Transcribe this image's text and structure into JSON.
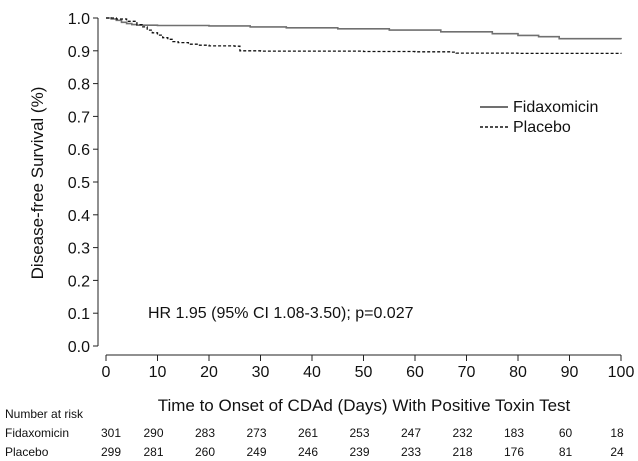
{
  "chart_data": {
    "type": "line",
    "title": "",
    "xlabel": "Time to Onset of CDAd (Days) With Positive Toxin Test",
    "ylabel": "Disease-free Survival (%)",
    "xlim": [
      0,
      100
    ],
    "ylim": [
      0.0,
      1.0
    ],
    "x_ticks": [
      "0",
      "10",
      "20",
      "30",
      "40",
      "50",
      "60",
      "70",
      "80",
      "90",
      "100"
    ],
    "y_ticks": [
      "0.0",
      "0.1",
      "0.2",
      "0.3",
      "0.4",
      "0.5",
      "0.6",
      "0.7",
      "0.8",
      "0.9",
      "1.0"
    ],
    "legend_placement": "right",
    "annotation": "HR 1.95 (95% CI 1.08-3.50); p=0.027",
    "series": [
      {
        "name": "Fidaxomicin",
        "style": "solid",
        "color": "#707070",
        "points": [
          [
            0,
            1.0
          ],
          [
            1,
            0.997
          ],
          [
            2,
            0.993
          ],
          [
            3,
            0.987
          ],
          [
            4,
            0.983
          ],
          [
            5,
            0.98
          ],
          [
            6,
            0.978
          ],
          [
            10,
            0.977
          ],
          [
            20,
            0.976
          ],
          [
            28,
            0.973
          ],
          [
            35,
            0.97
          ],
          [
            45,
            0.967
          ],
          [
            55,
            0.963
          ],
          [
            65,
            0.958
          ],
          [
            75,
            0.952
          ],
          [
            80,
            0.947
          ],
          [
            84,
            0.943
          ],
          [
            88,
            0.937
          ],
          [
            100,
            0.935
          ]
        ]
      },
      {
        "name": "Placebo",
        "style": "dashed",
        "color": "#111111",
        "points": [
          [
            0,
            1.0
          ],
          [
            2,
            0.997
          ],
          [
            4,
            0.99
          ],
          [
            6,
            0.98
          ],
          [
            7,
            0.973
          ],
          [
            8,
            0.963
          ],
          [
            9,
            0.955
          ],
          [
            10,
            0.948
          ],
          [
            11,
            0.94
          ],
          [
            12,
            0.935
          ],
          [
            13,
            0.928
          ],
          [
            14,
            0.925
          ],
          [
            16,
            0.92
          ],
          [
            18,
            0.917
          ],
          [
            20,
            0.915
          ],
          [
            25,
            0.914
          ],
          [
            26,
            0.9
          ],
          [
            30,
            0.899
          ],
          [
            40,
            0.899
          ],
          [
            50,
            0.898
          ],
          [
            60,
            0.897
          ],
          [
            67,
            0.896
          ],
          [
            68,
            0.893
          ],
          [
            80,
            0.892
          ],
          [
            90,
            0.892
          ],
          [
            100,
            0.891
          ]
        ]
      }
    ],
    "risk_table": {
      "title": "Number at risk",
      "rows": [
        {
          "name": "Fidaxomicin",
          "values": [
            "301",
            "290",
            "283",
            "273",
            "261",
            "253",
            "247",
            "232",
            "183",
            "60",
            "18"
          ]
        },
        {
          "name": "Placebo",
          "values": [
            "299",
            "281",
            "260",
            "249",
            "246",
            "239",
            "233",
            "218",
            "176",
            "81",
            "24"
          ]
        }
      ]
    }
  }
}
